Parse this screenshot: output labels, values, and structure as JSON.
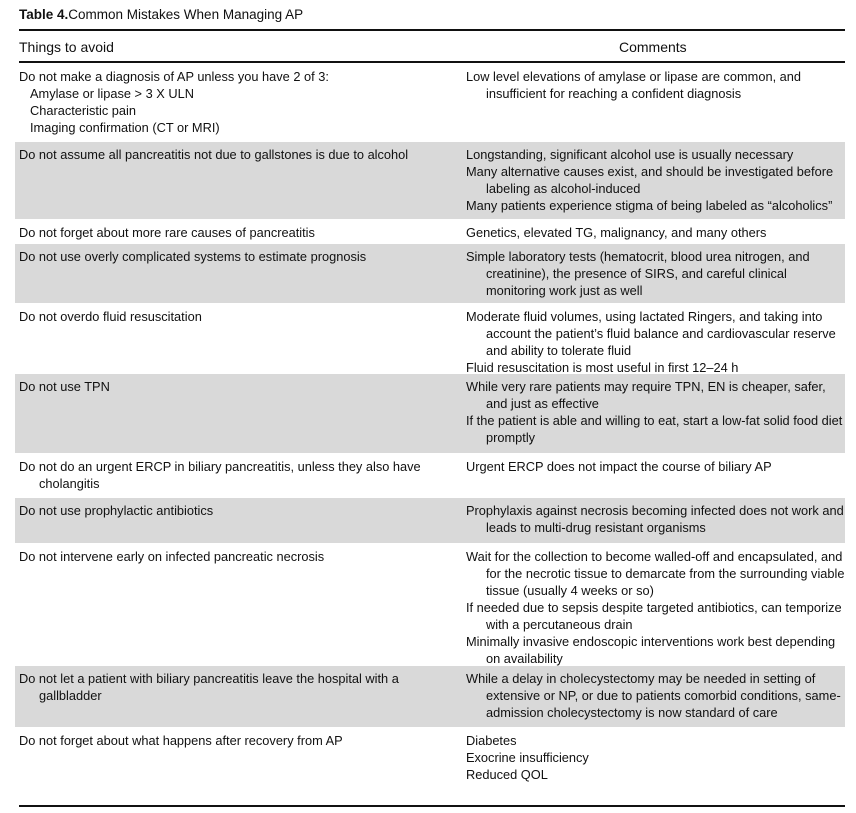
{
  "title": {
    "label": "Table 4.",
    "text": "Common Mistakes When Managing AP"
  },
  "columns": [
    "Things to avoid",
    "Comments"
  ],
  "rows": [
    {
      "avoid": [
        "Do not make a diagnosis of AP unless you have 2 of 3:"
      ],
      "sub": [
        "Amylase or lipase > 3 X ULN",
        "Characteristic pain",
        "Imaging confirmation (CT or MRI)"
      ],
      "comments": [
        "Low level elevations of amylase or lipase are common, and insufficient for reaching a confident diagnosis"
      ],
      "shade": false
    },
    {
      "avoid": [
        "Do not assume all pancreatitis not due to gallstones is due to alcohol"
      ],
      "comments": [
        "Longstanding, significant alcohol use is usually necessary",
        "Many alternative causes exist, and should be investigated before labeling as alcohol-induced",
        "Many patients experience stigma of being labeled as “alcoholics”"
      ],
      "shade": true
    },
    {
      "avoid": [
        "Do not forget about more rare causes of pancreatitis"
      ],
      "comments": [
        "Genetics, elevated TG, malignancy, and many others"
      ],
      "shade": false
    },
    {
      "avoid": [
        "Do not use overly complicated systems to estimate prognosis"
      ],
      "comments": [
        "Simple laboratory tests (hematocrit, blood urea nitrogen, and creatinine), the presence of SIRS, and careful clinical monitoring work just as well"
      ],
      "shade": true
    },
    {
      "avoid": [
        "Do not overdo fluid resuscitation"
      ],
      "comments": [
        "Moderate fluid volumes, using lactated Ringers, and taking into account the patient’s fluid balance and cardiovascular reserve and ability to tolerate fluid",
        "Fluid resuscitation is most useful in first 12–24 h"
      ],
      "shade": false
    },
    {
      "avoid": [
        "Do not use TPN"
      ],
      "comments": [
        "While very rare patients may require TPN, EN is cheaper, safer, and just as effective",
        "If the patient is able and willing to eat, start a low-fat solid food diet promptly"
      ],
      "shade": true
    },
    {
      "avoid": [
        "Do not do an urgent ERCP in biliary pancreatitis, unless they also have cholangitis"
      ],
      "comments": [
        "Urgent ERCP does not impact the course of biliary AP"
      ],
      "shade": false
    },
    {
      "avoid": [
        "Do not use prophylactic antibiotics"
      ],
      "comments": [
        "Prophylaxis against necrosis becoming infected does not work and leads to multi-drug resistant organisms"
      ],
      "shade": true
    },
    {
      "avoid": [
        "Do not intervene early on infected pancreatic necrosis"
      ],
      "comments": [
        "Wait for the collection to become walled-off and encapsulated, and for the necrotic tissue to demarcate from the surrounding viable tissue (usually 4 weeks or so)",
        "If needed due to sepsis despite targeted antibiotics, can temporize with a percutaneous drain",
        "Minimally invasive endoscopic interventions work best depending on availability"
      ],
      "shade": false
    },
    {
      "avoid": [
        "Do not let a patient with biliary pancreatitis leave the hospital with a gallbladder"
      ],
      "comments": [
        "While a delay in cholecystectomy may be needed in setting of extensive or NP, or due to patients comorbid conditions, same-admission cholecystectomy is now standard of care"
      ],
      "shade": true
    },
    {
      "avoid": [
        "Do not forget about what happens after recovery from AP"
      ],
      "comments": [
        "Diabetes",
        "Exocrine insufficiency",
        "Reduced QOL"
      ],
      "shade": false
    }
  ]
}
